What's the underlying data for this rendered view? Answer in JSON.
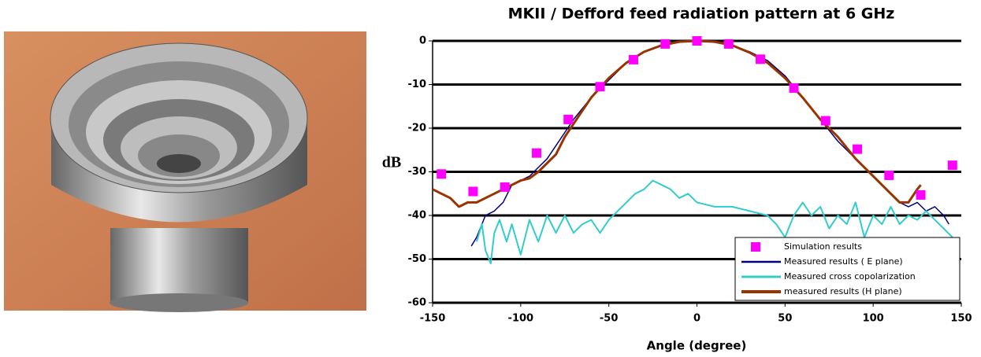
{
  "chart_data": {
    "type": "line",
    "title": "MKII / Defford feed radiation pattern at 6 GHz",
    "x_label": "Angle (degree)",
    "y_label": "dB",
    "xlim": [
      -150,
      150
    ],
    "xticks": [
      -150,
      -100,
      -50,
      0,
      50,
      100,
      150
    ],
    "ylim": [
      -60,
      0
    ],
    "yticks": [
      0,
      -10,
      -20,
      -30,
      -40,
      -50,
      -60
    ],
    "grid": true,
    "legend": "lower right",
    "series": [
      {
        "name": "Simulation results",
        "color": "#ff00ff",
        "marker": "square",
        "x": [
          -145,
          -127,
          -109,
          -91,
          -73,
          -55,
          -36,
          -18,
          0,
          18,
          36,
          55,
          73,
          91,
          109,
          127,
          145
        ],
        "values": [
          -30.5,
          -34.5,
          -33.5,
          -25.7,
          -18,
          -10.5,
          -4.3,
          -0.7,
          0,
          -0.7,
          -4.2,
          -10.8,
          -18.3,
          -24.8,
          -30.8,
          -35.3,
          -28.5
        ]
      },
      {
        "name": "Measured results ( E plane)",
        "color": "#000080",
        "width": 1.5,
        "x": [
          -128,
          -125,
          -120,
          -115,
          -110,
          -105,
          -100,
          -95,
          -90,
          -85,
          -80,
          -75,
          -70,
          -60,
          -50,
          -40,
          -30,
          -20,
          -10,
          0,
          10,
          20,
          30,
          40,
          50,
          55,
          60,
          70,
          80,
          90,
          100,
          110,
          115,
          120,
          125,
          130,
          135,
          140,
          143
        ],
        "values": [
          -47,
          -45,
          -40,
          -39,
          -37,
          -33,
          -32,
          -31,
          -29,
          -27,
          -24,
          -21,
          -18,
          -13,
          -9,
          -5,
          -2.5,
          -1,
          0,
          0,
          0,
          -1,
          -2.5,
          -4.5,
          -8,
          -10.5,
          -13,
          -18,
          -23,
          -27,
          -31,
          -35,
          -37,
          -38,
          -37,
          -39,
          -38,
          -40,
          -42
        ]
      },
      {
        "name": "Measured cross copolarization",
        "color": "#33cccc",
        "width": 2,
        "x": [
          -125,
          -122,
          -120,
          -117,
          -115,
          -112,
          -108,
          -105,
          -100,
          -95,
          -90,
          -85,
          -80,
          -75,
          -70,
          -65,
          -60,
          -55,
          -50,
          -45,
          -40,
          -35,
          -30,
          -25,
          -20,
          -15,
          -10,
          -5,
          0,
          10,
          20,
          30,
          40,
          45,
          50,
          55,
          60,
          65,
          70,
          75,
          80,
          85,
          90,
          95,
          100,
          105,
          110,
          115,
          120,
          125,
          130,
          135,
          140,
          145
        ],
        "values": [
          -46,
          -42,
          -48,
          -51,
          -44,
          -41,
          -46,
          -42,
          -49,
          -41,
          -46,
          -40,
          -44,
          -40,
          -44,
          -42,
          -41,
          -44,
          -41,
          -39,
          -37,
          -35,
          -34,
          -32,
          -33,
          -34,
          -36,
          -35,
          -37,
          -38,
          -38,
          -39,
          -40,
          -42,
          -45,
          -40,
          -37,
          -40,
          -38,
          -43,
          -40,
          -42,
          -37,
          -45,
          -40,
          -42,
          -38,
          -42,
          -40,
          -41,
          -39,
          -41,
          -43,
          -45
        ]
      },
      {
        "name": "measured results (H plane)",
        "color": "#993300",
        "width": 3,
        "x": [
          -150,
          -145,
          -140,
          -135,
          -130,
          -125,
          -120,
          -115,
          -110,
          -100,
          -95,
          -90,
          -80,
          -75,
          -70,
          -60,
          -50,
          -40,
          -30,
          -20,
          -10,
          0,
          10,
          20,
          30,
          40,
          50,
          60,
          70,
          80,
          90,
          100,
          110,
          115,
          120,
          125,
          127
        ],
        "values": [
          -34,
          -35,
          -36,
          -38,
          -37,
          -37,
          -36,
          -35,
          -34,
          -32,
          -31.5,
          -30,
          -26,
          -22,
          -19,
          -13,
          -8.5,
          -5,
          -2.5,
          -1,
          -0.2,
          0,
          -0.2,
          -1,
          -2.7,
          -5,
          -8.5,
          -13,
          -18,
          -22,
          -27,
          -31,
          -35,
          -37,
          -37,
          -34,
          -33
        ]
      }
    ]
  }
}
